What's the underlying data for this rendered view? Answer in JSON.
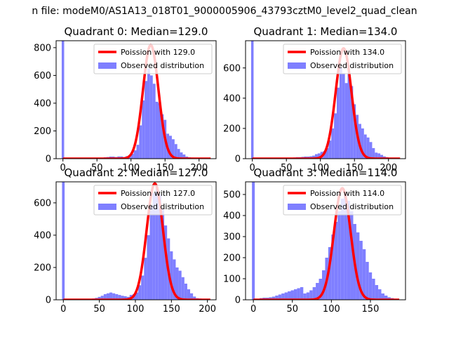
{
  "figure": {
    "suptitle": "n file: modeM0/AS1A13_018T01_9000005906_43793cztM0_level2_quad_clean"
  },
  "chart_data": [
    {
      "type": "bar",
      "title": "Quadrant 0: Median=129.0",
      "xlim": [
        -10,
        225
      ],
      "ylim": [
        0,
        850
      ],
      "xticks": [
        0,
        50,
        100,
        150,
        200
      ],
      "yticks": [
        0,
        200,
        400,
        600,
        800
      ],
      "grid": false,
      "legend_position": "top-right",
      "bin_width": 4,
      "zero_bar": {
        "x": 0,
        "value": 850
      },
      "hist": {
        "name": "Observed distribution",
        "color": "#7f7fff",
        "x": [
          52,
          56,
          60,
          64,
          68,
          72,
          76,
          80,
          84,
          88,
          92,
          96,
          100,
          104,
          108,
          112,
          116,
          120,
          124,
          128,
          132,
          136,
          140,
          144,
          148,
          152,
          156,
          160,
          164,
          168,
          172,
          176,
          180,
          184,
          188,
          192,
          196,
          200
        ],
        "values": [
          5,
          5,
          10,
          12,
          15,
          15,
          12,
          16,
          16,
          12,
          18,
          18,
          35,
          60,
          100,
          240,
          420,
          560,
          650,
          600,
          540,
          410,
          400,
          320,
          280,
          180,
          165,
          140,
          105,
          70,
          45,
          30,
          15,
          10,
          8,
          6,
          3,
          2
        ]
      },
      "series": [
        {
          "name": "Poission with 129.0",
          "color": "#ff0000",
          "mean": 129.0,
          "peak": 820
        }
      ]
    },
    {
      "type": "bar",
      "title": "Quadrant 1: Median=134.0",
      "xlim": [
        -10,
        225
      ],
      "ylim": [
        0,
        780
      ],
      "xticks": [
        0,
        50,
        100,
        150,
        200
      ],
      "yticks": [
        0,
        200,
        400,
        600
      ],
      "grid": false,
      "legend_position": "top-right",
      "bin_width": 4,
      "zero_bar": {
        "x": 0,
        "value": 780
      },
      "hist": {
        "name": "Observed distribution",
        "color": "#7f7fff",
        "x": [
          52,
          56,
          60,
          64,
          68,
          72,
          76,
          80,
          84,
          88,
          92,
          96,
          100,
          104,
          108,
          112,
          116,
          120,
          124,
          128,
          132,
          136,
          140,
          144,
          148,
          152,
          156,
          160,
          164,
          168,
          172,
          176,
          180,
          184,
          188,
          192,
          196,
          200,
          204,
          208
        ],
        "values": [
          5,
          5,
          8,
          10,
          10,
          12,
          14,
          14,
          16,
          20,
          30,
          35,
          45,
          50,
          70,
          120,
          200,
          300,
          470,
          600,
          560,
          500,
          560,
          480,
          360,
          290,
          230,
          200,
          160,
          140,
          110,
          70,
          40,
          35,
          25,
          15,
          10,
          6,
          3,
          2
        ]
      },
      "series": [
        {
          "name": "Poission with 134.0",
          "color": "#ff0000",
          "mean": 134.0,
          "peak": 730
        }
      ]
    },
    {
      "type": "bar",
      "title": "Quadrant 2: Median=127.0",
      "xlim": [
        -10,
        212
      ],
      "ylim": [
        0,
        730
      ],
      "xticks": [
        0,
        50,
        100,
        150,
        200
      ],
      "yticks": [
        0,
        200,
        400,
        600
      ],
      "grid": false,
      "legend_position": "top-right",
      "bin_width": 4,
      "zero_bar": {
        "x": 0,
        "value": 730
      },
      "hist": {
        "name": "Observed distribution",
        "color": "#7f7fff",
        "x": [
          36,
          40,
          44,
          48,
          52,
          56,
          60,
          64,
          68,
          72,
          76,
          80,
          84,
          88,
          92,
          96,
          100,
          104,
          108,
          112,
          116,
          120,
          124,
          128,
          132,
          136,
          140,
          144,
          148,
          152,
          156,
          160,
          164,
          168,
          172,
          176,
          180,
          184,
          188,
          192,
          196
        ],
        "values": [
          6,
          8,
          12,
          18,
          25,
          35,
          40,
          45,
          40,
          35,
          30,
          25,
          22,
          18,
          30,
          35,
          45,
          90,
          150,
          260,
          400,
          580,
          660,
          700,
          650,
          560,
          460,
          380,
          300,
          250,
          200,
          180,
          140,
          100,
          65,
          40,
          20,
          10,
          8,
          5,
          3
        ]
      },
      "series": [
        {
          "name": "Poission with 127.0",
          "color": "#ff0000",
          "mean": 127.0,
          "peak": 720
        }
      ]
    },
    {
      "type": "bar",
      "title": "Quadrant 3: Median=114.0",
      "xlim": [
        -10,
        195
      ],
      "ylim": [
        0,
        560
      ],
      "xticks": [
        0,
        50,
        100,
        150
      ],
      "yticks": [
        0,
        100,
        200,
        300,
        400,
        500
      ],
      "grid": false,
      "legend_position": "top-right",
      "bin_width": 4,
      "zero_bar": {
        "x": 0,
        "value": 560
      },
      "hist": {
        "name": "Observed distribution",
        "color": "#7f7fff",
        "x": [
          4,
          8,
          12,
          16,
          20,
          24,
          28,
          32,
          36,
          40,
          44,
          48,
          52,
          56,
          60,
          64,
          68,
          72,
          76,
          80,
          84,
          88,
          92,
          96,
          100,
          104,
          108,
          112,
          116,
          120,
          124,
          128,
          132,
          136,
          140,
          144,
          148,
          152,
          156,
          160,
          164,
          168,
          172,
          176,
          180
        ],
        "values": [
          5,
          8,
          10,
          10,
          12,
          15,
          20,
          25,
          30,
          35,
          40,
          45,
          50,
          55,
          60,
          30,
          35,
          45,
          60,
          80,
          100,
          140,
          200,
          250,
          310,
          370,
          420,
          480,
          500,
          470,
          420,
          360,
          320,
          280,
          240,
          180,
          130,
          100,
          70,
          50,
          30,
          20,
          12,
          8,
          4
        ]
      },
      "series": [
        {
          "name": "Poission with 114.0",
          "color": "#ff0000",
          "mean": 114.0,
          "peak": 530
        }
      ]
    }
  ]
}
